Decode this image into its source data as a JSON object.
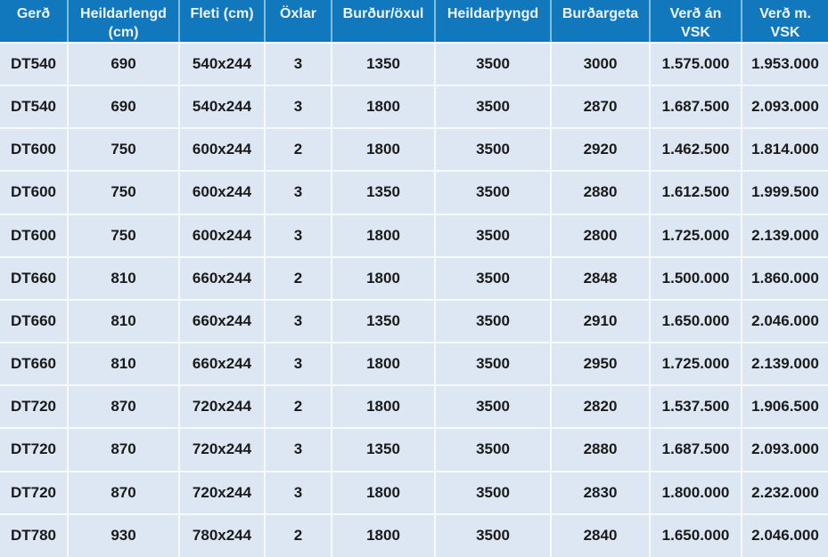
{
  "chart_data": {
    "type": "table",
    "title": "",
    "columns": [
      "Gerð",
      "Heildarlengd\n(cm)",
      "Fleti (cm)",
      "Öxlar",
      "Burður/öxul",
      "Heildarþyngd",
      "Burðargeta",
      "Verð án\nVSK",
      "Verð m.\nVSK"
    ],
    "rows": [
      [
        "DT540",
        "690",
        "540x244",
        "3",
        "1350",
        "3500",
        "3000",
        "1.575.000",
        "1.953.000"
      ],
      [
        "DT540",
        "690",
        "540x244",
        "3",
        "1800",
        "3500",
        "2870",
        "1.687.500",
        "2.093.000"
      ],
      [
        "DT600",
        "750",
        "600x244",
        "2",
        "1800",
        "3500",
        "2920",
        "1.462.500",
        "1.814.000"
      ],
      [
        "DT600",
        "750",
        "600x244",
        "3",
        "1350",
        "3500",
        "2880",
        "1.612.500",
        "1.999.500"
      ],
      [
        "DT600",
        "750",
        "600x244",
        "3",
        "1800",
        "3500",
        "2800",
        "1.725.000",
        "2.139.000"
      ],
      [
        "DT660",
        "810",
        "660x244",
        "2",
        "1800",
        "3500",
        "2848",
        "1.500.000",
        "1.860.000"
      ],
      [
        "DT660",
        "810",
        "660x244",
        "3",
        "1350",
        "3500",
        "2910",
        "1.650.000",
        "2.046.000"
      ],
      [
        "DT660",
        "810",
        "660x244",
        "3",
        "1800",
        "3500",
        "2950",
        "1.725.000",
        "2.139.000"
      ],
      [
        "DT720",
        "870",
        "720x244",
        "2",
        "1800",
        "3500",
        "2820",
        "1.537.500",
        "1.906.500"
      ],
      [
        "DT720",
        "870",
        "720x244",
        "3",
        "1350",
        "3500",
        "2880",
        "1.687.500",
        "2.093.000"
      ],
      [
        "DT720",
        "870",
        "720x244",
        "3",
        "1800",
        "3500",
        "2830",
        "1.800.000",
        "2.232.000"
      ],
      [
        "DT780",
        "930",
        "780x244",
        "2",
        "1800",
        "3500",
        "2840",
        "1.650.000",
        "2.046.000"
      ]
    ],
    "layout": {
      "legend": "none",
      "grid": "white gridlines between cells",
      "header_position": "top"
    }
  },
  "colors": {
    "header_bg": "#1278BE",
    "header_text": "#EFF7FD",
    "header_divider": "#7FBEE4",
    "row_bg": "#DCE7F3",
    "body_text": "#1A1A1A",
    "grid_line": "#F7FAFC"
  }
}
